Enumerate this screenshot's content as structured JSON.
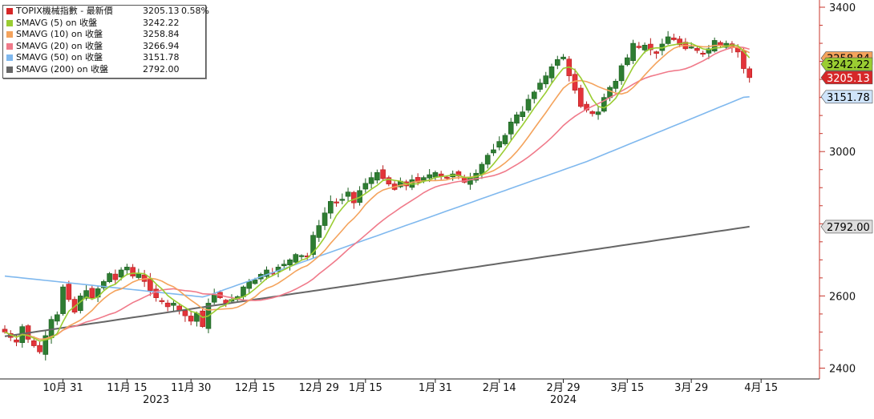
{
  "chart_data": {
    "type": "candlestick",
    "legend": [
      {
        "label": "TOPIX機械指數 - 最新價",
        "value": "3205.13",
        "change": "0.58%",
        "color": "#d62728"
      },
      {
        "label": "SMAVG (5)  on 收盤",
        "value": "3242.22",
        "change": "",
        "color": "#9acd32"
      },
      {
        "label": "SMAVG (10)  on 收盤",
        "value": "3258.84",
        "change": "",
        "color": "#f4a35c"
      },
      {
        "label": "SMAVG (20)  on 收盤",
        "value": "3266.94",
        "change": "",
        "color": "#f07a8a"
      },
      {
        "label": "SMAVG (50)  on 收盤",
        "value": "3151.78",
        "change": "",
        "color": "#7fb8ee"
      },
      {
        "label": "SMAVG (200)  on 收盤",
        "value": "2792.00",
        "change": "",
        "color": "#666666"
      }
    ],
    "y_axis": {
      "min": 2370,
      "max": 3420,
      "ticks": [
        2400,
        2600,
        2800,
        3000,
        3200,
        3400
      ],
      "tick_labels": [
        "2400",
        "2600",
        "",
        "3000",
        "",
        "3400"
      ],
      "side": "right"
    },
    "x_ticks": [
      {
        "day": 10,
        "label": "10月 31"
      },
      {
        "day": 21,
        "label": "11月 15"
      },
      {
        "day": 32,
        "label": "11月 30"
      },
      {
        "day": 43,
        "label": "12月 15"
      },
      {
        "day": 54,
        "label": "12月 29"
      },
      {
        "day": 62,
        "label": "1月 15"
      },
      {
        "day": 74,
        "label": "1月 31"
      },
      {
        "day": 85,
        "label": "2月 14"
      },
      {
        "day": 96,
        "label": "2月 29"
      },
      {
        "day": 107,
        "label": "3月 15"
      },
      {
        "day": 118,
        "label": "3月 29"
      },
      {
        "day": 130,
        "label": "4月 15"
      }
    ],
    "year_labels": [
      {
        "day": 26,
        "label": "2023"
      },
      {
        "day": 96,
        "label": "2024"
      }
    ],
    "x_range": [
      0,
      137
    ],
    "price_tags": [
      {
        "value": 3258.84,
        "text": "3258.84",
        "bg": "#f4a35c",
        "fg": "#000000"
      },
      {
        "value": 3242.22,
        "text": "3242.22",
        "bg": "#9acd32",
        "fg": "#000000"
      },
      {
        "value": 3205.13,
        "text": "3205.13",
        "bg": "#d62728",
        "fg": "#ffffff"
      },
      {
        "value": 3151.78,
        "text": "3151.78",
        "bg": "#cfe4fa",
        "fg": "#000000"
      },
      {
        "value": 2792.0,
        "text": "2792.00",
        "bg": "#dddddd",
        "fg": "#000000"
      }
    ],
    "closes": [
      2500,
      2485,
      2472,
      2515,
      2480,
      2462,
      2445,
      2490,
      2535,
      2548,
      2625,
      2590,
      2555,
      2600,
      2615,
      2595,
      2620,
      2640,
      2662,
      2645,
      2672,
      2680,
      2655,
      2662,
      2640,
      2615,
      2595,
      2585,
      2570,
      2580,
      2560,
      2545,
      2530,
      2552,
      2515,
      2580,
      2605,
      2595,
      2580,
      2590,
      2598,
      2625,
      2640,
      2645,
      2660,
      2672,
      2664,
      2680,
      2688,
      2700,
      2715,
      2712,
      2708,
      2768,
      2795,
      2830,
      2862,
      2860,
      2868,
      2888,
      2858,
      2892,
      2912,
      2928,
      2942,
      2925,
      2910,
      2895,
      2918,
      2905,
      2922,
      2915,
      2928,
      2936,
      2942,
      2932,
      2926,
      2938,
      2932,
      2915,
      2928,
      2940,
      2965,
      2990,
      3005,
      3028,
      3045,
      3082,
      3102,
      3110,
      3145,
      3165,
      3190,
      3210,
      3235,
      3255,
      3262,
      3210,
      3170,
      3125,
      3115,
      3105,
      3110,
      3150,
      3178,
      3195,
      3238,
      3260,
      3300,
      3288,
      3295,
      3282,
      3272,
      3298,
      3318,
      3310,
      3296,
      3285,
      3290,
      3280,
      3272,
      3285,
      3308,
      3295,
      3300,
      3288,
      3276,
      3230,
      3205
    ]
  }
}
